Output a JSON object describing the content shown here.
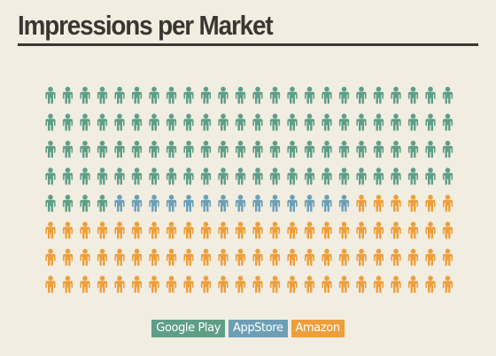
{
  "title": "Impressions per Market",
  "chart_data": {
    "type": "icon-array",
    "icon": "person-icon",
    "rows": 8,
    "columns": 24,
    "series": [
      {
        "name": "Google Play",
        "value": 100,
        "color": "#5e9e87"
      },
      {
        "name": "AppStore",
        "value": 14,
        "color": "#6c9fb5"
      },
      {
        "name": "Amazon",
        "value": 78,
        "color": "#ee9e3a"
      }
    ],
    "total": 192,
    "legend_position": "bottom-center"
  }
}
